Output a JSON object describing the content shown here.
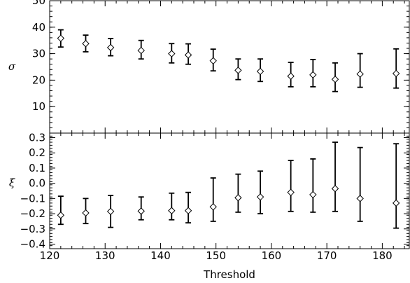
{
  "chart_data": {
    "type": "scatter",
    "xlabel": "Threshold",
    "xlim": [
      120,
      185
    ],
    "xticks": [
      120,
      130,
      140,
      150,
      160,
      170,
      180
    ],
    "x": [
      122,
      126.5,
      131,
      136.5,
      142,
      145,
      149.5,
      154,
      158,
      163.5,
      167.5,
      171.5,
      176,
      182.5
    ],
    "panels": [
      {
        "ylabel": "σ",
        "ylim": [
          0,
          50
        ],
        "yticks": [
          10,
          20,
          30,
          40,
          50
        ],
        "series": [
          {
            "values": [
              35.8,
              33.8,
              32.3,
              31.2,
              30.0,
              29.5,
              27.3,
              23.7,
              23.3,
              21.5,
              22.0,
              20.3,
              22.3,
              22.5
            ],
            "err_low": [
              32.5,
              30.7,
              29.2,
              28.0,
              26.5,
              26.0,
              23.5,
              20.2,
              19.5,
              17.5,
              17.5,
              15.7,
              17.3,
              17.0
            ],
            "err_high": [
              39.0,
              37.0,
              35.7,
              35.0,
              33.8,
              33.7,
              31.7,
              28.0,
              28.0,
              26.7,
              27.8,
              26.5,
              30.0,
              31.8
            ]
          }
        ]
      },
      {
        "ylabel": "ξ",
        "ylim": [
          -0.43,
          0.33
        ],
        "yticks": [
          -0.4,
          -0.3,
          -0.2,
          -0.1,
          0.0,
          0.1,
          0.2,
          0.3
        ],
        "ytick_labels": [
          "−0.4",
          "−0.3",
          "−0.2",
          "−0.1",
          "0.0",
          "0.1",
          "0.2",
          "0.3"
        ],
        "series": [
          {
            "values": [
              -0.21,
              -0.195,
              -0.185,
              -0.183,
              -0.18,
              -0.18,
              -0.155,
              -0.095,
              -0.09,
              -0.06,
              -0.075,
              -0.035,
              -0.1,
              -0.13
            ],
            "err_low": [
              -0.27,
              -0.265,
              -0.29,
              -0.24,
              -0.24,
              -0.26,
              -0.25,
              -0.19,
              -0.2,
              -0.185,
              -0.19,
              -0.185,
              -0.25,
              -0.295
            ],
            "err_high": [
              -0.085,
              -0.1,
              -0.08,
              -0.09,
              -0.065,
              -0.06,
              0.035,
              0.06,
              0.08,
              0.15,
              0.16,
              0.27,
              0.235,
              0.26
            ]
          }
        ]
      }
    ]
  }
}
